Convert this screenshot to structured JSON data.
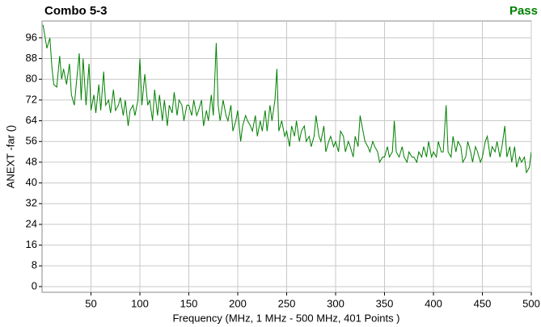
{
  "chart_data": {
    "type": "line",
    "title": "Combo 5-3",
    "status": "Pass",
    "status_color": "#008000",
    "x_label": "Frequency (MHz, 1 MHz - 500 MHz, 401 Points )",
    "y_label": "ANEXT -far ()",
    "xlim": [
      0,
      500
    ],
    "ylim": [
      -2.2,
      102.5
    ],
    "xticks": [
      50,
      100,
      150,
      200,
      250,
      300,
      350,
      400,
      450,
      500
    ],
    "yticks": [
      0,
      8,
      16,
      24,
      32,
      40,
      48,
      56,
      64,
      72,
      80,
      88,
      96
    ],
    "grid": true,
    "x": [
      1,
      5,
      8,
      10,
      12,
      15,
      18,
      20,
      22,
      25,
      28,
      30,
      33,
      35,
      38,
      40,
      42,
      45,
      48,
      50,
      53,
      55,
      58,
      60,
      63,
      65,
      68,
      70,
      73,
      75,
      78,
      80,
      83,
      85,
      88,
      90,
      93,
      95,
      98,
      100,
      102,
      105,
      108,
      110,
      113,
      115,
      118,
      120,
      123,
      125,
      128,
      130,
      133,
      135,
      138,
      140,
      143,
      145,
      148,
      150,
      153,
      155,
      158,
      160,
      163,
      165,
      168,
      170,
      173,
      175,
      178,
      180,
      182,
      185,
      188,
      190,
      193,
      195,
      198,
      200,
      203,
      205,
      208,
      210,
      213,
      215,
      218,
      220,
      223,
      225,
      228,
      230,
      233,
      235,
      238,
      240,
      242,
      245,
      248,
      250,
      253,
      255,
      258,
      260,
      263,
      265,
      268,
      270,
      273,
      275,
      278,
      280,
      283,
      285,
      288,
      290,
      293,
      295,
      298,
      300,
      303,
      305,
      308,
      310,
      313,
      315,
      318,
      320,
      323,
      325,
      328,
      330,
      333,
      335,
      338,
      340,
      343,
      345,
      348,
      350,
      353,
      355,
      358,
      360,
      362,
      365,
      368,
      370,
      373,
      375,
      378,
      380,
      383,
      385,
      388,
      390,
      393,
      395,
      398,
      400,
      403,
      405,
      408,
      410,
      413,
      415,
      418,
      420,
      423,
      425,
      428,
      430,
      433,
      435,
      438,
      440,
      443,
      445,
      448,
      450,
      453,
      455,
      458,
      460,
      463,
      465,
      468,
      470,
      473,
      475,
      478,
      480,
      483,
      485,
      488,
      490,
      493,
      495,
      498,
      500
    ],
    "series": [
      {
        "name": "ANEXT -far",
        "color": "#008000",
        "values": [
          101,
          92,
          96,
          85,
          78,
          77,
          89,
          80,
          84,
          78,
          86,
          74,
          70,
          78,
          90,
          72,
          88,
          70,
          86,
          68,
          74,
          67,
          78,
          68,
          83,
          70,
          72,
          67,
          76,
          68,
          70,
          73,
          66,
          72,
          62,
          68,
          70,
          66,
          72,
          88,
          70,
          82,
          70,
          72,
          64,
          76,
          66,
          74,
          64,
          72,
          62,
          70,
          67,
          75,
          66,
          72,
          70,
          64,
          70,
          70,
          66,
          72,
          66,
          68,
          72,
          62,
          68,
          64,
          74,
          66,
          94,
          70,
          64,
          72,
          66,
          64,
          70,
          60,
          64,
          68,
          56,
          62,
          66,
          64,
          62,
          60,
          66,
          58,
          64,
          60,
          68,
          60,
          70,
          64,
          72,
          84,
          60,
          64,
          58,
          60,
          54,
          62,
          58,
          64,
          56,
          60,
          62,
          56,
          58,
          54,
          58,
          66,
          58,
          56,
          62,
          52,
          56,
          58,
          54,
          56,
          52,
          60,
          58,
          52,
          56,
          54,
          50,
          58,
          54,
          66,
          60,
          56,
          54,
          52,
          56,
          54,
          52,
          48,
          50,
          50,
          54,
          50,
          52,
          64,
          52,
          50,
          54,
          50,
          48,
          52,
          50,
          50,
          48,
          52,
          50,
          54,
          50,
          56,
          50,
          52,
          50,
          56,
          52,
          52,
          70,
          52,
          50,
          58,
          52,
          56,
          54,
          48,
          50,
          56,
          52,
          48,
          54,
          52,
          48,
          50,
          56,
          58,
          50,
          54,
          52,
          56,
          50,
          54,
          62,
          50,
          54,
          48,
          54,
          46,
          50,
          48,
          50,
          44,
          46,
          52
        ]
      }
    ]
  }
}
